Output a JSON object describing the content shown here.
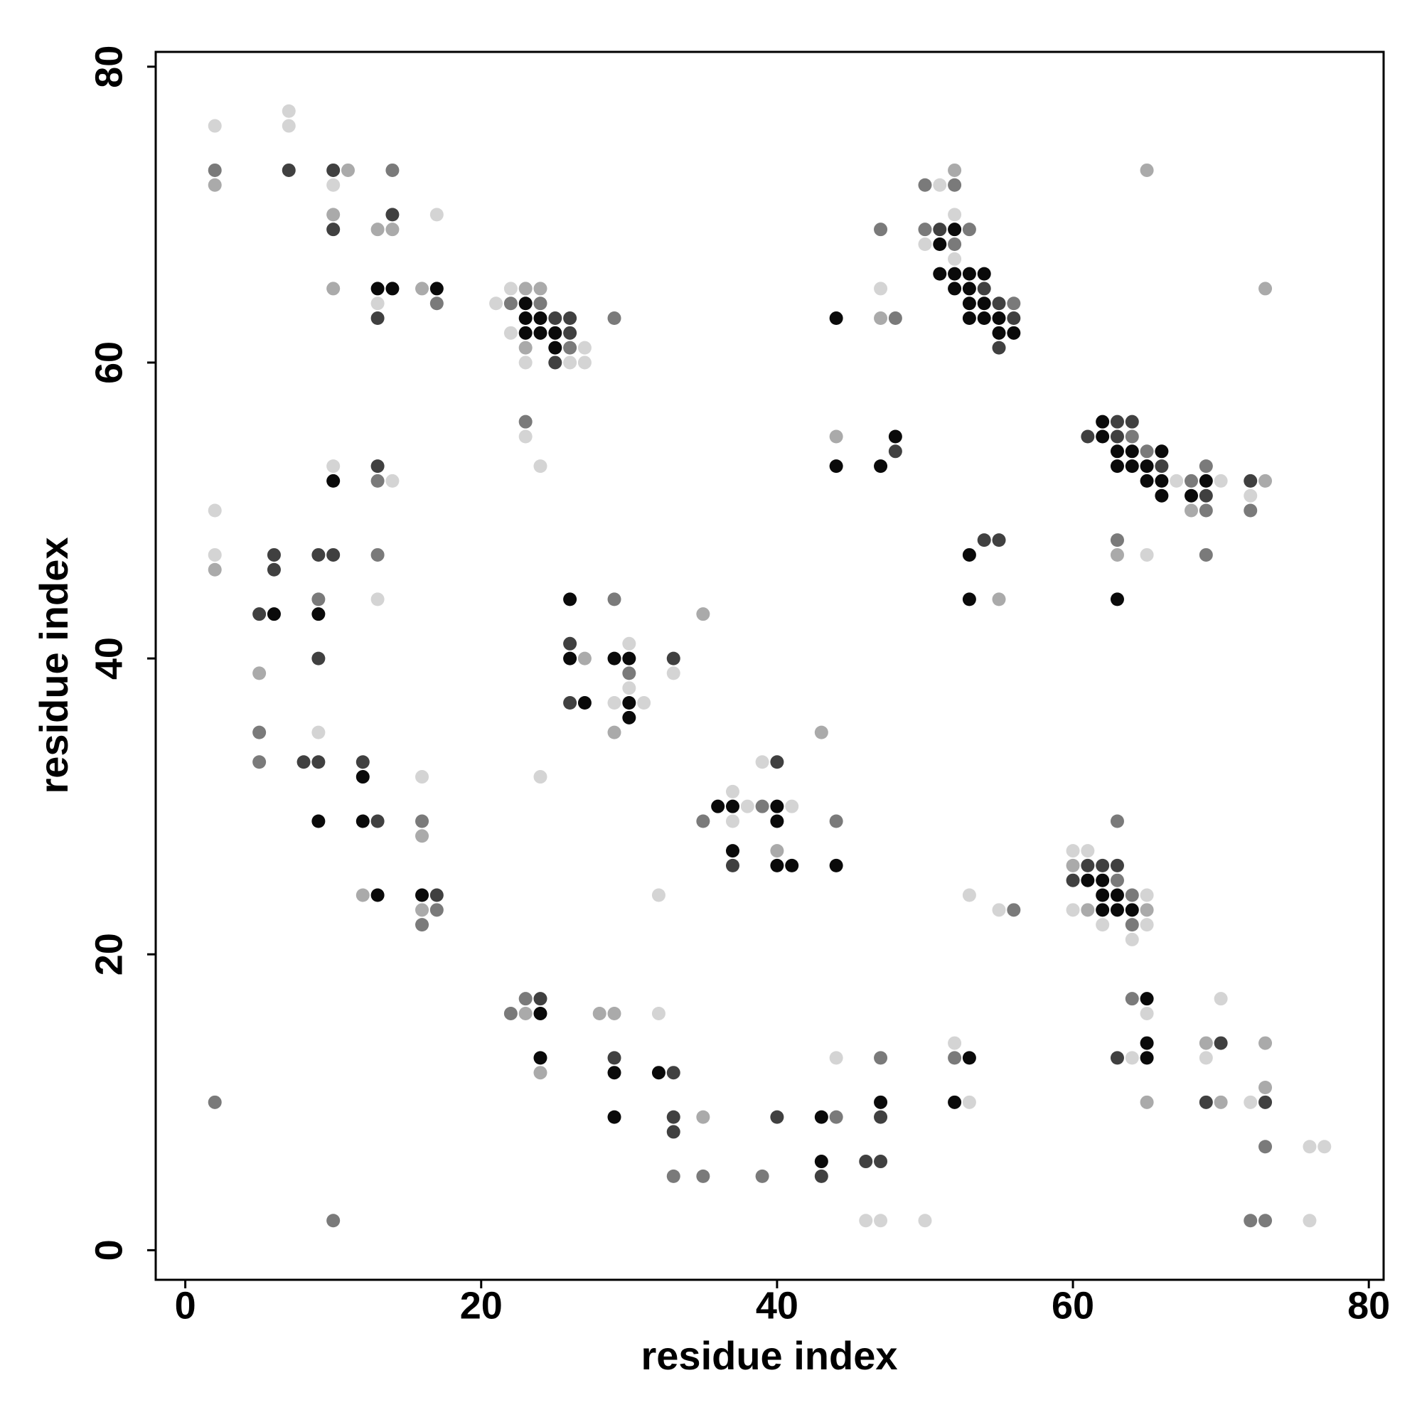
{
  "chart_data": {
    "type": "scatter",
    "xlabel": "residue index",
    "ylabel": "residue index",
    "xlim": [
      -2,
      81
    ],
    "ylim": [
      -2,
      81
    ],
    "xticks": [
      0,
      20,
      40,
      60,
      80
    ],
    "yticks": [
      0,
      20,
      40,
      60,
      80
    ],
    "series": [
      {
        "color": "#0a0a0a",
        "x": [
          52,
          51,
          51,
          52,
          53,
          54,
          13,
          14,
          17,
          52,
          53,
          23,
          53,
          54,
          23,
          24,
          44,
          53,
          54,
          55,
          23,
          24,
          25,
          55,
          56,
          25,
          62,
          48,
          62,
          63,
          64,
          66,
          44,
          47,
          63,
          64,
          65,
          10,
          65,
          66,
          69,
          66,
          68,
          53,
          26,
          53,
          63,
          6,
          9,
          26,
          29,
          30,
          27,
          30,
          30,
          12,
          36,
          37,
          40,
          9,
          12,
          40,
          37,
          40,
          41,
          44,
          61,
          62,
          13,
          16,
          62,
          63,
          62,
          63,
          64,
          65,
          24,
          65,
          24,
          53,
          65,
          29,
          32,
          47,
          52,
          29,
          43,
          43
        ],
        "y": [
          69,
          68,
          66,
          66,
          66,
          66,
          65,
          65,
          65,
          65,
          65,
          64,
          64,
          64,
          63,
          63,
          63,
          63,
          63,
          63,
          62,
          62,
          62,
          62,
          62,
          61,
          56,
          55,
          55,
          54,
          54,
          54,
          53,
          53,
          53,
          53,
          53,
          52,
          52,
          52,
          52,
          51,
          51,
          47,
          44,
          44,
          44,
          43,
          43,
          40,
          40,
          40,
          37,
          37,
          36,
          32,
          30,
          30,
          30,
          29,
          29,
          29,
          27,
          26,
          26,
          26,
          25,
          25,
          24,
          24,
          24,
          24,
          23,
          23,
          23,
          17,
          16,
          14,
          13,
          13,
          13,
          12,
          12,
          10,
          10,
          9,
          9,
          6
        ]
      },
      {
        "color": "#404040",
        "x": [
          10,
          7,
          14,
          10,
          51,
          54,
          55,
          13,
          25,
          26,
          56,
          26,
          55,
          25,
          63,
          64,
          61,
          63,
          48,
          13,
          66,
          72,
          69,
          54,
          55,
          6,
          9,
          10,
          6,
          5,
          26,
          9,
          33,
          26,
          8,
          9,
          12,
          40,
          13,
          37,
          61,
          62,
          63,
          60,
          17,
          24,
          70,
          29,
          63,
          33,
          69,
          73,
          33,
          40,
          47,
          33,
          46,
          47,
          43
        ],
        "y": [
          73,
          73,
          70,
          69,
          69,
          65,
          64,
          63,
          63,
          63,
          63,
          62,
          61,
          60,
          56,
          56,
          55,
          55,
          54,
          53,
          53,
          52,
          51,
          48,
          48,
          47,
          47,
          47,
          46,
          43,
          41,
          40,
          40,
          37,
          33,
          33,
          33,
          33,
          29,
          26,
          26,
          26,
          26,
          25,
          24,
          17,
          14,
          13,
          13,
          12,
          10,
          10,
          9,
          9,
          9,
          8,
          6,
          6,
          5
        ]
      },
      {
        "color": "#7a7a7a",
        "x": [
          2,
          14,
          50,
          52,
          47,
          50,
          53,
          52,
          17,
          22,
          24,
          56,
          29,
          48,
          26,
          23,
          64,
          65,
          69,
          13,
          68,
          69,
          72,
          63,
          13,
          69,
          9,
          29,
          30,
          5,
          5,
          39,
          16,
          35,
          44,
          63,
          63,
          64,
          17,
          56,
          16,
          64,
          23,
          64,
          22,
          47,
          52,
          2,
          44,
          73,
          33,
          35,
          39,
          10,
          72,
          73
        ],
        "y": [
          73,
          73,
          72,
          72,
          69,
          69,
          69,
          68,
          64,
          64,
          64,
          64,
          63,
          63,
          61,
          56,
          55,
          54,
          53,
          52,
          52,
          50,
          50,
          48,
          47,
          47,
          44,
          44,
          39,
          35,
          33,
          30,
          29,
          29,
          29,
          29,
          25,
          24,
          23,
          23,
          22,
          22,
          17,
          17,
          16,
          13,
          13,
          10,
          9,
          7,
          5,
          5,
          5,
          2,
          2,
          2
        ]
      },
      {
        "color": "#aaaaaa",
        "x": [
          11,
          52,
          65,
          2,
          10,
          13,
          14,
          10,
          16,
          23,
          24,
          73,
          47,
          23,
          44,
          73,
          68,
          63,
          2,
          55,
          35,
          27,
          5,
          29,
          43,
          16,
          40,
          60,
          12,
          16,
          61,
          65,
          23,
          28,
          29,
          69,
          73,
          24,
          73,
          65,
          70,
          35
        ],
        "y": [
          73,
          73,
          73,
          72,
          70,
          69,
          69,
          65,
          65,
          65,
          65,
          65,
          63,
          61,
          55,
          52,
          50,
          47,
          46,
          44,
          43,
          40,
          39,
          35,
          35,
          28,
          27,
          26,
          24,
          23,
          23,
          23,
          16,
          16,
          16,
          14,
          14,
          12,
          11,
          10,
          10,
          9
        ]
      },
      {
        "color": "#d4d4d4",
        "x": [
          7,
          2,
          7,
          10,
          51,
          17,
          52,
          50,
          52,
          22,
          47,
          13,
          21,
          22,
          27,
          23,
          26,
          27,
          23,
          24,
          10,
          14,
          67,
          70,
          72,
          2,
          2,
          65,
          13,
          30,
          33,
          30,
          29,
          31,
          9,
          16,
          24,
          39,
          37,
          38,
          41,
          37,
          60,
          61,
          32,
          53,
          65,
          55,
          60,
          62,
          65,
          64,
          70,
          32,
          65,
          52,
          44,
          64,
          69,
          53,
          72,
          76,
          77,
          46,
          47,
          50,
          76
        ],
        "y": [
          77,
          76,
          76,
          72,
          72,
          70,
          70,
          68,
          67,
          65,
          65,
          64,
          64,
          62,
          61,
          60,
          60,
          60,
          55,
          53,
          53,
          52,
          52,
          52,
          51,
          50,
          47,
          47,
          44,
          41,
          39,
          38,
          37,
          37,
          35,
          32,
          32,
          33,
          31,
          30,
          30,
          29,
          27,
          27,
          24,
          24,
          24,
          23,
          23,
          22,
          22,
          21,
          17,
          16,
          16,
          14,
          13,
          13,
          13,
          10,
          10,
          7,
          7,
          2,
          2,
          2,
          2
        ]
      }
    ]
  }
}
